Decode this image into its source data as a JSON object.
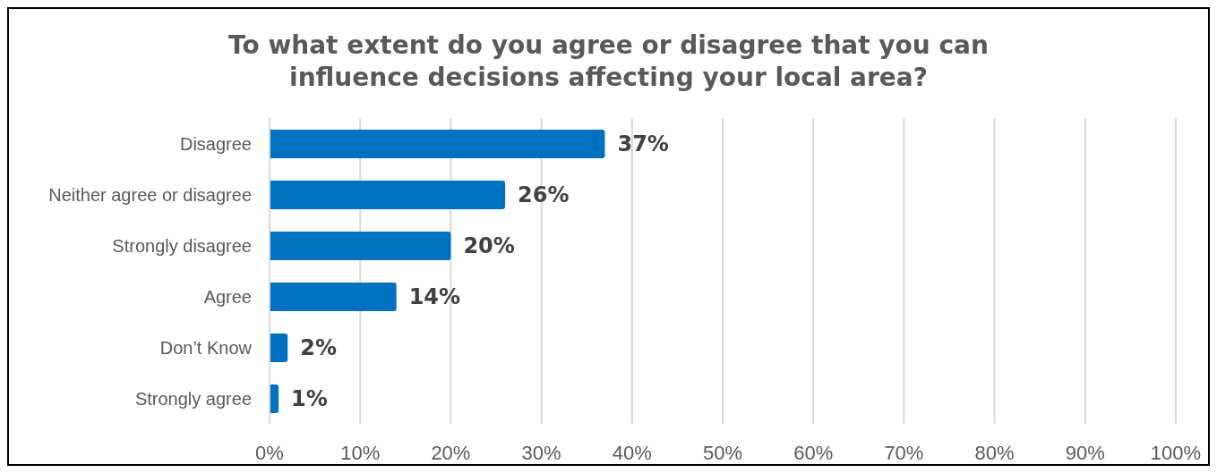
{
  "chart_data": {
    "type": "bar",
    "orientation": "horizontal",
    "title": "To what extent do you agree or disagree that you can influence decisions affecting your local area?",
    "categories": [
      "Disagree",
      "Neither agree or disagree",
      "Strongly disagree",
      "Agree",
      "Don’t Know",
      "Strongly agree"
    ],
    "values": [
      37,
      26,
      20,
      14,
      2,
      1
    ],
    "value_labels": [
      "37%",
      "26%",
      "20%",
      "14%",
      "2%",
      "1%"
    ],
    "color": "#0070c0",
    "xlim": [
      0,
      100
    ],
    "xticks": [
      {
        "value": 0,
        "label": "0%"
      },
      {
        "value": 10,
        "label": "10%"
      },
      {
        "value": 20,
        "label": "20%"
      },
      {
        "value": 30,
        "label": "30%"
      },
      {
        "value": 40,
        "label": "40%"
      },
      {
        "value": 50,
        "label": "50%"
      },
      {
        "value": 60,
        "label": "60%"
      },
      {
        "value": 70,
        "label": "70%"
      },
      {
        "value": 80,
        "label": "80%"
      },
      {
        "value": 90,
        "label": "90%"
      },
      {
        "value": 100,
        "label": "100%"
      }
    ],
    "grid": "x",
    "legend": false
  }
}
